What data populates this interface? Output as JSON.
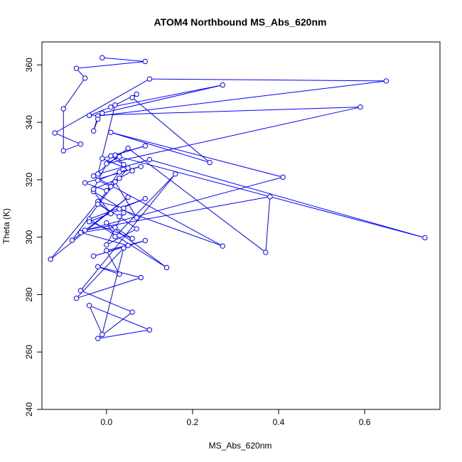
{
  "chart_data": {
    "type": "line",
    "title": "ATOM4 Northbound MS_Abs_620nm",
    "xlabel": "MS_Abs_620nm",
    "ylabel": "Theta (K)",
    "xlim": [
      -0.15,
      0.775
    ],
    "ylim": [
      240,
      368
    ],
    "x_ticks": [
      0.0,
      0.2,
      0.4,
      0.6
    ],
    "x_tick_labels": [
      "0.0",
      "0.2",
      "0.4",
      "0.6"
    ],
    "y_ticks": [
      240,
      260,
      280,
      300,
      320,
      340,
      360
    ],
    "y_tick_labels": [
      "240",
      "260",
      "280",
      "300",
      "320",
      "340",
      "360"
    ],
    "grid": false,
    "marker": "open-circle",
    "series_color": "#0000ff",
    "series": [
      {
        "x": [
          -0.01,
          0.09,
          -0.07,
          -0.05,
          -0.1,
          -0.1,
          -0.06,
          -0.12,
          0.1,
          0.65,
          -0.02,
          -0.03,
          -0.02,
          -0.01,
          0.27,
          0.01,
          -0.04,
          0.59,
          0.0,
          0.03,
          0.74,
          0.1,
          -0.02,
          0.02,
          0.07,
          0.06,
          0.24,
          0.01,
          0.41,
          -0.05,
          0.38,
          0.37,
          0.05,
          -0.03,
          0.27,
          0.03,
          0.09,
          -0.04,
          0.14,
          0.0,
          0.02,
          0.16,
          -0.06,
          0.06,
          -0.02,
          0.1,
          -0.04,
          -0.01,
          0.04,
          -0.07,
          0.08,
          -0.02,
          0.03,
          0.0,
          0.09,
          -0.03,
          0.05,
          -0.06,
          0.02,
          0.06,
          -0.04,
          0.04,
          -0.02,
          0.01,
          -0.03,
          0.07,
          0.02,
          -0.08,
          0.05,
          -0.13,
          0.01,
          -0.02,
          0.03,
          0.08,
          -0.05,
          0.0,
          0.04,
          0.02,
          0.09,
          -0.01,
          0.06,
          0.03,
          -0.03,
          0.01,
          0.05,
          -0.02,
          0.03,
          0.07,
          0.0,
          0.04
        ],
        "y": [
          362.5,
          361.2,
          358.8,
          355.4,
          344.7,
          330.1,
          332.4,
          336.3,
          355.1,
          354.4,
          342.2,
          337.0,
          341.1,
          343.2,
          353.0,
          345.3,
          342.4,
          345.3,
          325.6,
          328.0,
          299.8,
          327.0,
          322.0,
          346.0,
          349.8,
          348.6,
          326.0,
          336.5,
          320.9,
          302.4,
          314.1,
          294.7,
          331.0,
          321.3,
          296.9,
          309.8,
          313.4,
          306.3,
          289.4,
          305.0,
          300.2,
          322.0,
          281.4,
          273.9,
          264.7,
          267.7,
          276.2,
          266.1,
          296.2,
          278.7,
          285.9,
          289.7,
          287.1,
          295.3,
          298.8,
          293.4,
          297.1,
          301.6,
          303.4,
          299.5,
          305.4,
          310.1,
          312.4,
          308.2,
          315.9,
          306.8,
          319.3,
          298.9,
          313.9,
          292.3,
          317.6,
          319.8,
          322.7,
          324.6,
          318.9,
          316.2,
          325.3,
          328.6,
          331.8,
          327.4,
          323.1,
          320.5,
          316.7,
          328.3,
          324.1,
          311.5,
          307.2,
          302.9,
          297.3,
          308.5
        ]
      }
    ]
  }
}
